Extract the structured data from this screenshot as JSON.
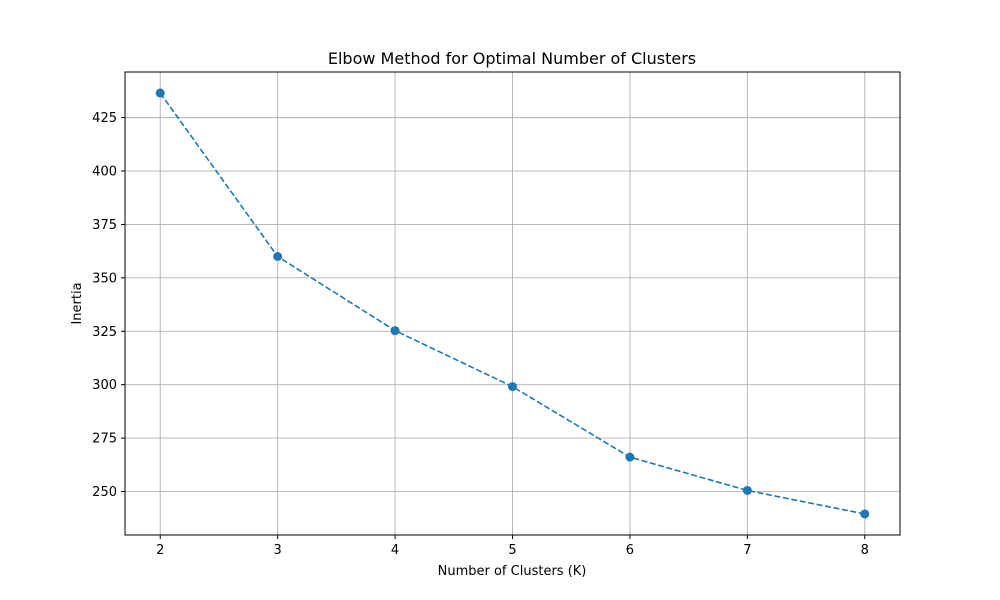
{
  "chart_data": {
    "type": "line",
    "title": "Elbow Method for Optimal Number of Clusters",
    "xlabel": "Number of Clusters (K)",
    "ylabel": "Inertia",
    "x": [
      2,
      3,
      4,
      5,
      6,
      7,
      8
    ],
    "series": [
      {
        "values": [
          436.5,
          360.0,
          325.3,
          299.1,
          266.1,
          250.5,
          239.5
        ],
        "color": "#1f77b4",
        "line_style": "dashed",
        "marker": "circle"
      }
    ],
    "xticks": [
      "2",
      "3",
      "4",
      "5",
      "6",
      "7",
      "8"
    ],
    "yticks": [
      "250",
      "275",
      "300",
      "325",
      "350",
      "375",
      "400",
      "425"
    ],
    "xlim": [
      1.7,
      8.3
    ],
    "ylim": [
      229.65,
      446.35
    ],
    "grid": true
  }
}
